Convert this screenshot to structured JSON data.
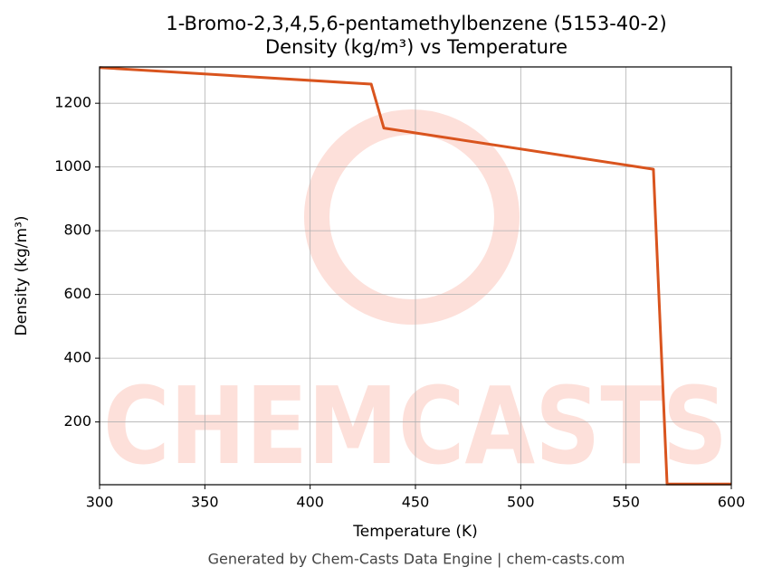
{
  "chart_data": {
    "type": "line",
    "title": "1-Bromo-2,3,4,5,6-pentamethylbenzene (5153-40-2)",
    "subtitle": "Density (kg/m³) vs Temperature",
    "x_label": "Temperature (K)",
    "y_label": "Density (kg/m³)",
    "footer": "Generated by Chem-Casts Data Engine | chem-casts.com",
    "watermark": "CHEMCASTS",
    "x": [
      300,
      429,
      435,
      563,
      569.5,
      600
    ],
    "series": [
      {
        "name": "Density",
        "color": "#d9541e",
        "values": [
          1312,
          1260,
          1122,
          993,
          5,
          5
        ]
      }
    ],
    "xlim": [
      300,
      600
    ],
    "xticks": [
      300,
      350,
      400,
      450,
      500,
      550,
      600
    ],
    "ylim": [
      3,
      1314
    ],
    "yticks": [
      200,
      400,
      600,
      800,
      1000,
      1200
    ],
    "grid": true
  }
}
